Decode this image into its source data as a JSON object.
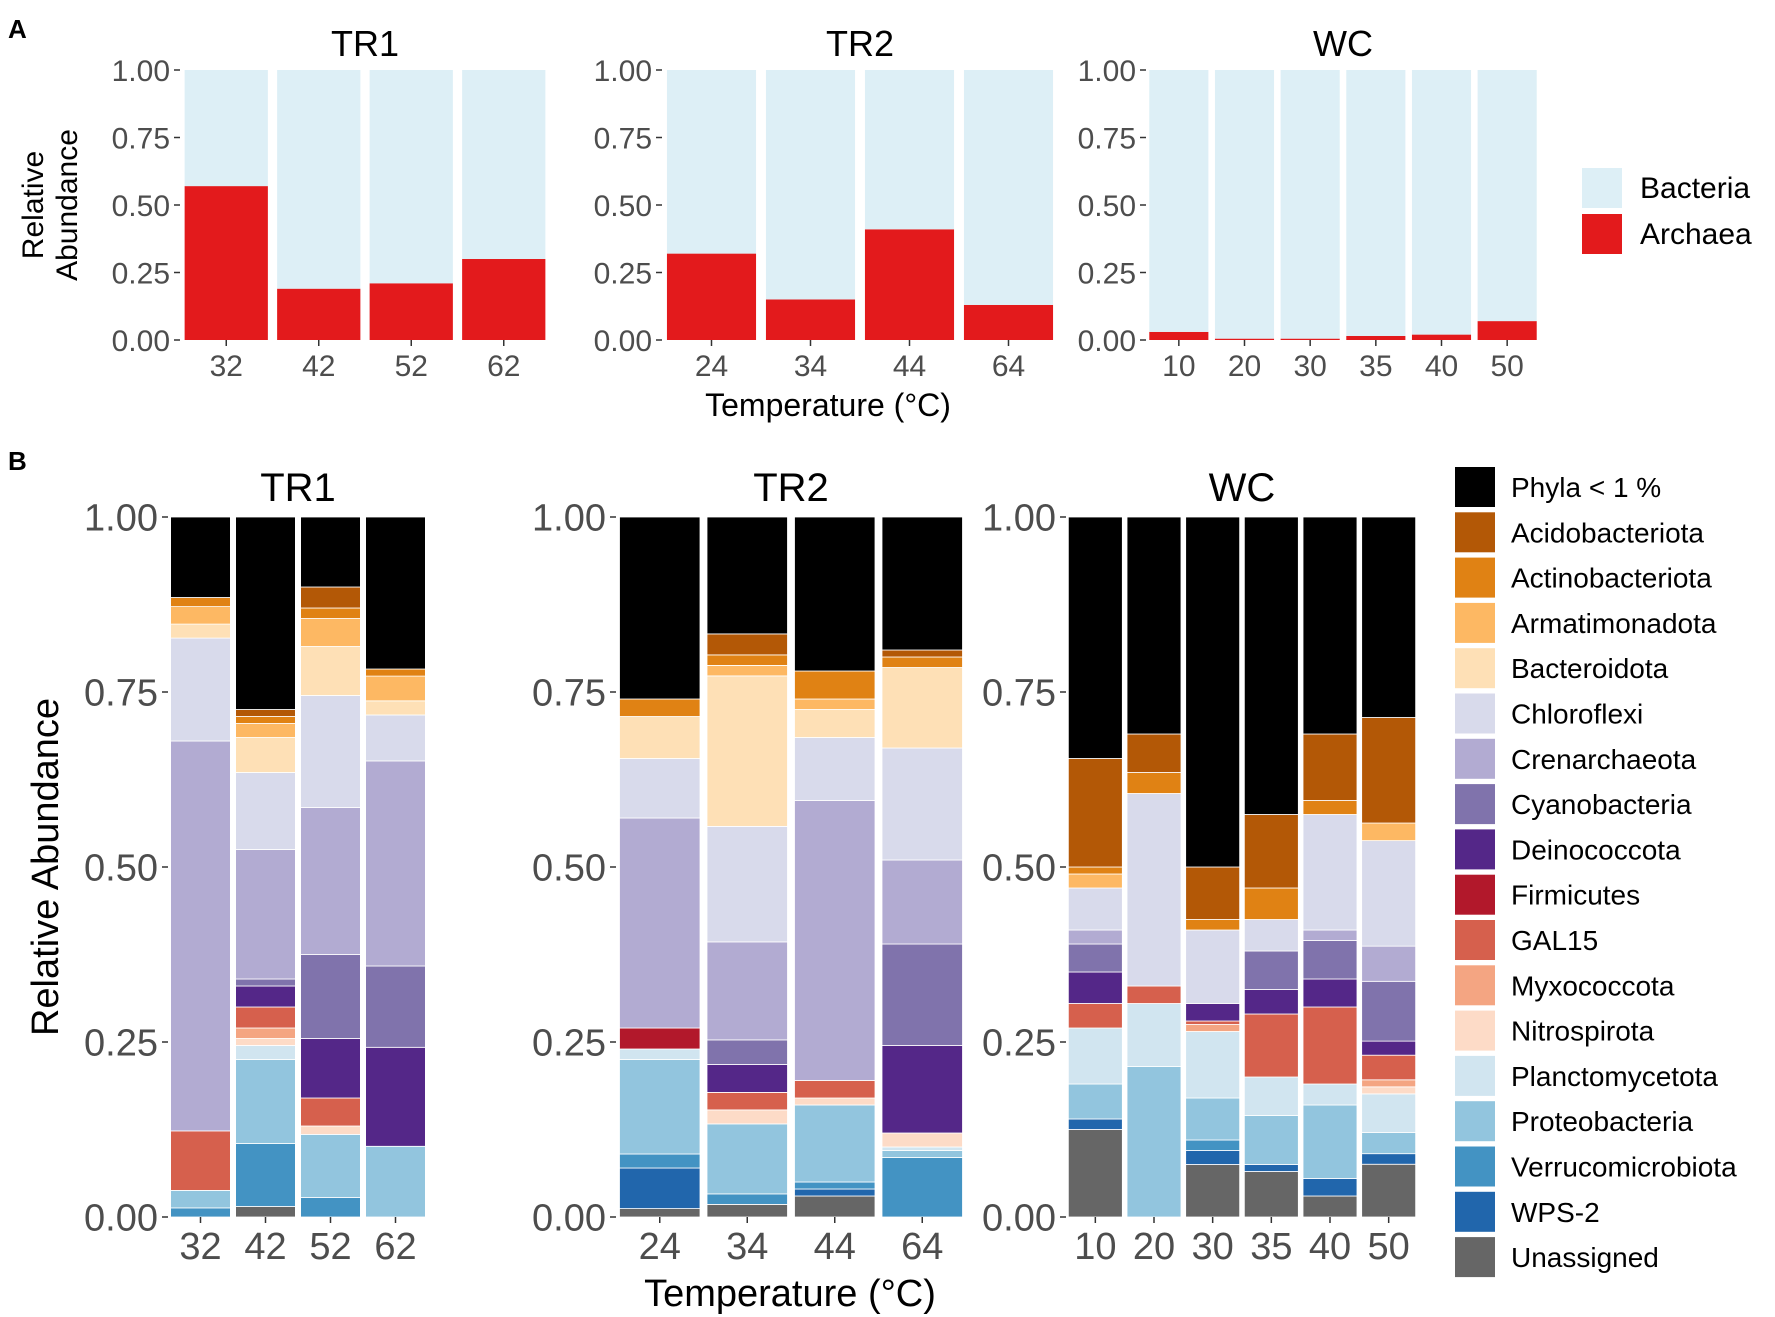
{
  "panel_labels": {
    "a": "A",
    "b": "B"
  },
  "chart_data": [
    {
      "id": "A",
      "type": "stacked-bar",
      "panel_label": "A",
      "ylabel": "Relative\nAbundance",
      "xlabel": "Temperature (°C)",
      "ylim": [
        0,
        1
      ],
      "yticks": [
        "0.00",
        "0.25",
        "0.50",
        "0.75",
        "1.00"
      ],
      "legend_position": "right",
      "legend": [
        {
          "name": "Bacteria",
          "color": "#ddeff6"
        },
        {
          "name": "Archaea",
          "color": "#e31a1c"
        }
      ],
      "facets": [
        {
          "title": "TR1",
          "categories": [
            "32",
            "42",
            "52",
            "62"
          ],
          "series": [
            {
              "name": "Archaea",
              "values": [
                0.57,
                0.19,
                0.21,
                0.3
              ]
            },
            {
              "name": "Bacteria",
              "values": [
                0.43,
                0.81,
                0.79,
                0.7
              ]
            }
          ]
        },
        {
          "title": "TR2",
          "categories": [
            "24",
            "34",
            "44",
            "64"
          ],
          "series": [
            {
              "name": "Archaea",
              "values": [
                0.32,
                0.15,
                0.41,
                0.13
              ]
            },
            {
              "name": "Bacteria",
              "values": [
                0.68,
                0.85,
                0.59,
                0.87
              ]
            }
          ]
        },
        {
          "title": "WC",
          "categories": [
            "10",
            "20",
            "30",
            "35",
            "40",
            "50"
          ],
          "series": [
            {
              "name": "Archaea",
              "values": [
                0.03,
                0.005,
                0.005,
                0.015,
                0.02,
                0.07
              ]
            },
            {
              "name": "Bacteria",
              "values": [
                0.97,
                0.995,
                0.995,
                0.985,
                0.98,
                0.93
              ]
            }
          ]
        }
      ]
    },
    {
      "id": "B",
      "type": "stacked-bar",
      "panel_label": "B",
      "ylabel": "Relative Abundance",
      "xlabel": "Temperature (°C)",
      "ylim": [
        0,
        1
      ],
      "yticks": [
        "0.00",
        "0.25",
        "0.50",
        "0.75",
        "1.00"
      ],
      "legend_position": "right",
      "legend": [
        {
          "name": "Phyla < 1 %",
          "color": "#000000"
        },
        {
          "name": "Acidobacteriota",
          "color": "#b35806"
        },
        {
          "name": "Actinobacteriota",
          "color": "#e08214"
        },
        {
          "name": "Armatimonadota",
          "color": "#fdb863"
        },
        {
          "name": "Bacteroidota",
          "color": "#fee0b6"
        },
        {
          "name": "Chloroflexi",
          "color": "#d8daeb"
        },
        {
          "name": "Crenarchaeota",
          "color": "#b2abd2"
        },
        {
          "name": "Cyanobacteria",
          "color": "#8073ac"
        },
        {
          "name": "Deinococcota",
          "color": "#542788"
        },
        {
          "name": "Firmicutes",
          "color": "#b2182b"
        },
        {
          "name": "GAL15",
          "color": "#d6604d"
        },
        {
          "name": "Myxococcota",
          "color": "#f4a582"
        },
        {
          "name": "Nitrospirota",
          "color": "#fddbc7"
        },
        {
          "name": "Planctomycetota",
          "color": "#d1e5f0"
        },
        {
          "name": "Proteobacteria",
          "color": "#92c5de"
        },
        {
          "name": "Verrucomicrobiota",
          "color": "#4393c3"
        },
        {
          "name": "WPS-2",
          "color": "#2166ac"
        },
        {
          "name": "Unassigned",
          "color": "#666666"
        }
      ],
      "stack_order_bottom_to_top": [
        "Unassigned",
        "WPS-2",
        "Verrucomicrobiota",
        "Proteobacteria",
        "Planctomycetota",
        "Nitrospirota",
        "Myxococcota",
        "GAL15",
        "Firmicutes",
        "Deinococcota",
        "Cyanobacteria",
        "Crenarchaeota",
        "Chloroflexi",
        "Bacteroidota",
        "Armatimonadota",
        "Actinobacteriota",
        "Acidobacteriota",
        "Phyla < 1 %"
      ],
      "facets": [
        {
          "title": "TR1",
          "categories": [
            "32",
            "42",
            "52",
            "62"
          ],
          "bars": [
            {
              "Unassigned": 0,
              "WPS-2": 0,
              "Verrucomicrobiota": 0.013,
              "Proteobacteria": 0.025,
              "Planctomycetota": 0,
              "Nitrospirota": 0,
              "Myxococcota": 0,
              "GAL15": 0.085,
              "Firmicutes": 0,
              "Deinococcota": 0,
              "Cyanobacteria": 0,
              "Crenarchaeota": 0.557,
              "Chloroflexi": 0.147,
              "Bacteroidota": 0.02,
              "Armatimonadota": 0.025,
              "Actinobacteriota": 0.013,
              "Acidobacteriota": 0,
              "Phyla < 1 %": 0.115
            },
            {
              "Unassigned": 0.015,
              "WPS-2": 0,
              "Verrucomicrobiota": 0.09,
              "Proteobacteria": 0.12,
              "Planctomycetota": 0.02,
              "Nitrospirota": 0.01,
              "Myxococcota": 0.015,
              "GAL15": 0.03,
              "Firmicutes": 0,
              "Deinococcota": 0.03,
              "Cyanobacteria": 0.01,
              "Crenarchaeota": 0.185,
              "Chloroflexi": 0.11,
              "Bacteroidota": 0.05,
              "Armatimonadota": 0.02,
              "Actinobacteriota": 0.01,
              "Acidobacteriota": 0.01,
              "Phyla < 1 %": 0.275
            },
            {
              "Unassigned": 0,
              "WPS-2": 0,
              "Verrucomicrobiota": 0.028,
              "Proteobacteria": 0.09,
              "Planctomycetota": 0,
              "Nitrospirota": 0.012,
              "Myxococcota": 0,
              "GAL15": 0.04,
              "Firmicutes": 0,
              "Deinococcota": 0.085,
              "Cyanobacteria": 0.12,
              "Crenarchaeota": 0.21,
              "Chloroflexi": 0.16,
              "Bacteroidota": 0.07,
              "Armatimonadota": 0.04,
              "Actinobacteriota": 0.015,
              "Acidobacteriota": 0.03,
              "Phyla < 1 %": 0.1
            },
            {
              "Unassigned": 0,
              "WPS-2": 0,
              "Verrucomicrobiota": 0,
              "Proteobacteria": 0.1,
              "Planctomycetota": 0,
              "Nitrospirota": 0,
              "Myxococcota": 0,
              "GAL15": 0,
              "Firmicutes": 0,
              "Deinococcota": 0.14,
              "Cyanobacteria": 0.115,
              "Crenarchaeota": 0.29,
              "Chloroflexi": 0.065,
              "Bacteroidota": 0.02,
              "Armatimonadota": 0.035,
              "Actinobacteriota": 0.01,
              "Acidobacteriota": 0,
              "Phyla < 1 %": 0.215
            }
          ]
        },
        {
          "title": "TR2",
          "categories": [
            "24",
            "34",
            "44",
            "64"
          ],
          "bars": [
            {
              "Unassigned": 0.012,
              "WPS-2": 0.058,
              "Verrucomicrobiota": 0.02,
              "Proteobacteria": 0.135,
              "Planctomycetota": 0.015,
              "Nitrospirota": 0,
              "Myxococcota": 0,
              "GAL15": 0,
              "Firmicutes": 0.03,
              "Deinococcota": 0,
              "Cyanobacteria": 0,
              "Crenarchaeota": 0.3,
              "Chloroflexi": 0.085,
              "Bacteroidota": 0.06,
              "Armatimonadota": 0,
              "Actinobacteriota": 0.025,
              "Acidobacteriota": 0,
              "Phyla < 1 %": 0.26
            },
            {
              "Unassigned": 0.018,
              "WPS-2": 0,
              "Verrucomicrobiota": 0.015,
              "Proteobacteria": 0.1,
              "Planctomycetota": 0,
              "Nitrospirota": 0.02,
              "Myxococcota": 0,
              "GAL15": 0.025,
              "Firmicutes": 0,
              "Deinococcota": 0.04,
              "Cyanobacteria": 0.035,
              "Crenarchaeota": 0.14,
              "Chloroflexi": 0.165,
              "Bacteroidota": 0.215,
              "Armatimonadota": 0.015,
              "Actinobacteriota": 0.015,
              "Acidobacteriota": 0.03,
              "Phyla < 1 %": 0.167
            },
            {
              "Unassigned": 0.03,
              "WPS-2": 0.01,
              "Verrucomicrobiota": 0.01,
              "Proteobacteria": 0.11,
              "Planctomycetota": 0,
              "Nitrospirota": 0.01,
              "Myxococcota": 0,
              "GAL15": 0.025,
              "Firmicutes": 0,
              "Deinococcota": 0,
              "Cyanobacteria": 0,
              "Crenarchaeota": 0.4,
              "Chloroflexi": 0.09,
              "Bacteroidota": 0.04,
              "Armatimonadota": 0.015,
              "Actinobacteriota": 0.04,
              "Acidobacteriota": 0,
              "Phyla < 1 %": 0.22
            },
            {
              "Unassigned": 0,
              "WPS-2": 0,
              "Verrucomicrobiota": 0.085,
              "Proteobacteria": 0.01,
              "Planctomycetota": 0.005,
              "Nitrospirota": 0.02,
              "Myxococcota": 0,
              "GAL15": 0,
              "Firmicutes": 0,
              "Deinococcota": 0.125,
              "Cyanobacteria": 0.145,
              "Crenarchaeota": 0.12,
              "Chloroflexi": 0.16,
              "Bacteroidota": 0.115,
              "Armatimonadota": 0,
              "Actinobacteriota": 0.015,
              "Acidobacteriota": 0.01,
              "Phyla < 1 %": 0.19
            }
          ]
        },
        {
          "title": "WC",
          "categories": [
            "10",
            "20",
            "30",
            "35",
            "40",
            "50"
          ],
          "bars": [
            {
              "Unassigned": 0.125,
              "WPS-2": 0.015,
              "Verrucomicrobiota": 0,
              "Proteobacteria": 0.05,
              "Planctomycetota": 0.08,
              "Nitrospirota": 0,
              "Myxococcota": 0,
              "GAL15": 0.035,
              "Firmicutes": 0,
              "Deinococcota": 0.045,
              "Cyanobacteria": 0.04,
              "Crenarchaeota": 0.02,
              "Chloroflexi": 0.06,
              "Bacteroidota": 0,
              "Armatimonadota": 0.02,
              "Actinobacteriota": 0.01,
              "Acidobacteriota": 0.155,
              "Phyla < 1 %": 0.345
            },
            {
              "Unassigned": 0,
              "WPS-2": 0,
              "Verrucomicrobiota": 0,
              "Proteobacteria": 0.215,
              "Planctomycetota": 0.09,
              "Nitrospirota": 0,
              "Myxococcota": 0,
              "GAL15": 0.025,
              "Firmicutes": 0,
              "Deinococcota": 0,
              "Cyanobacteria": 0,
              "Crenarchaeota": 0,
              "Chloroflexi": 0.275,
              "Bacteroidota": 0,
              "Armatimonadota": 0,
              "Actinobacteriota": 0.03,
              "Acidobacteriota": 0.055,
              "Phyla < 1 %": 0.31
            },
            {
              "Unassigned": 0.075,
              "WPS-2": 0.02,
              "Verrucomicrobiota": 0.015,
              "Proteobacteria": 0.06,
              "Planctomycetota": 0.095,
              "Nitrospirota": 0,
              "Myxococcota": 0.01,
              "GAL15": 0.005,
              "Firmicutes": 0,
              "Deinococcota": 0.025,
              "Cyanobacteria": 0,
              "Crenarchaeota": 0,
              "Chloroflexi": 0.105,
              "Bacteroidota": 0,
              "Armatimonadota": 0,
              "Actinobacteriota": 0.015,
              "Acidobacteriota": 0.075,
              "Phyla < 1 %": 0.5
            },
            {
              "Unassigned": 0.065,
              "WPS-2": 0.01,
              "Verrucomicrobiota": 0,
              "Proteobacteria": 0.07,
              "Planctomycetota": 0.055,
              "Nitrospirota": 0,
              "Myxococcota": 0,
              "GAL15": 0.09,
              "Firmicutes": 0,
              "Deinococcota": 0.035,
              "Cyanobacteria": 0.055,
              "Crenarchaeota": 0,
              "Chloroflexi": 0.045,
              "Bacteroidota": 0,
              "Armatimonadota": 0,
              "Actinobacteriota": 0.045,
              "Acidobacteriota": 0.105,
              "Phyla < 1 %": 0.425
            },
            {
              "Unassigned": 0.03,
              "WPS-2": 0.025,
              "Verrucomicrobiota": 0,
              "Proteobacteria": 0.105,
              "Planctomycetota": 0.03,
              "Nitrospirota": 0,
              "Myxococcota": 0,
              "GAL15": 0.11,
              "Firmicutes": 0,
              "Deinococcota": 0.04,
              "Cyanobacteria": 0.055,
              "Crenarchaeota": 0.015,
              "Chloroflexi": 0.165,
              "Bacteroidota": 0,
              "Armatimonadota": 0,
              "Actinobacteriota": 0.02,
              "Acidobacteriota": 0.095,
              "Phyla < 1 %": 0.31
            },
            {
              "Unassigned": 0.075,
              "WPS-2": 0.015,
              "Verrucomicrobiota": 0,
              "Proteobacteria": 0.03,
              "Planctomycetota": 0.055,
              "Nitrospirota": 0.01,
              "Myxococcota": 0.01,
              "GAL15": 0.035,
              "Firmicutes": 0,
              "Deinococcota": 0.02,
              "Cyanobacteria": 0.085,
              "Crenarchaeota": 0.05,
              "Chloroflexi": 0.15,
              "Bacteroidota": 0,
              "Armatimonadota": 0.025,
              "Actinobacteriota": 0,
              "Acidobacteriota": 0.15,
              "Phyla < 1 %": 0.285
            }
          ]
        }
      ]
    }
  ]
}
